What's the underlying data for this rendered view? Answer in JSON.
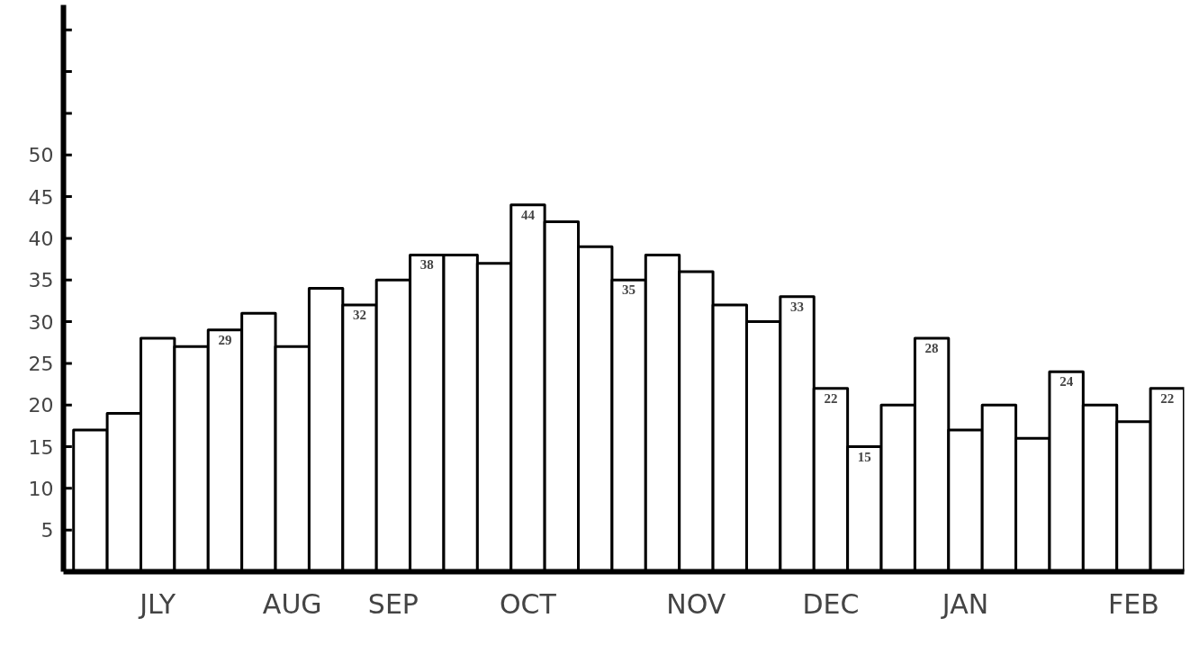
{
  "chart_data": {
    "type": "bar",
    "categories": [
      null,
      null,
      "JLY",
      null,
      null,
      null,
      "AUG",
      null,
      null,
      "SEP",
      null,
      null,
      null,
      "OCT",
      null,
      null,
      null,
      null,
      "NOV",
      null,
      null,
      null,
      "DEC",
      null,
      null,
      null,
      "JAN",
      null,
      null,
      null,
      null,
      "FEB",
      null
    ],
    "values": [
      17,
      19,
      28,
      27,
      29,
      31,
      27,
      34,
      32,
      35,
      38,
      38,
      37,
      44,
      42,
      39,
      35,
      38,
      36,
      32,
      30,
      33,
      22,
      15,
      20,
      28,
      17,
      20,
      16,
      24,
      20,
      18,
      22
    ],
    "value_labels": [
      null,
      null,
      null,
      null,
      "29",
      null,
      null,
      null,
      "32",
      null,
      "38",
      null,
      null,
      "44",
      null,
      null,
      "35",
      null,
      null,
      null,
      null,
      "33",
      "22",
      "15",
      null,
      "28",
      null,
      null,
      null,
      "24",
      null,
      null,
      "22"
    ],
    "color": "#ffffff",
    "ylim": [
      0,
      68
    ],
    "yticks": [
      5,
      10,
      15,
      20,
      25,
      30,
      35,
      40,
      45,
      50,
      {
        "value": 55,
        "label": null
      },
      {
        "value": 60,
        "label": null
      },
      {
        "value": 65,
        "label": null
      }
    ],
    "grid": false
  }
}
